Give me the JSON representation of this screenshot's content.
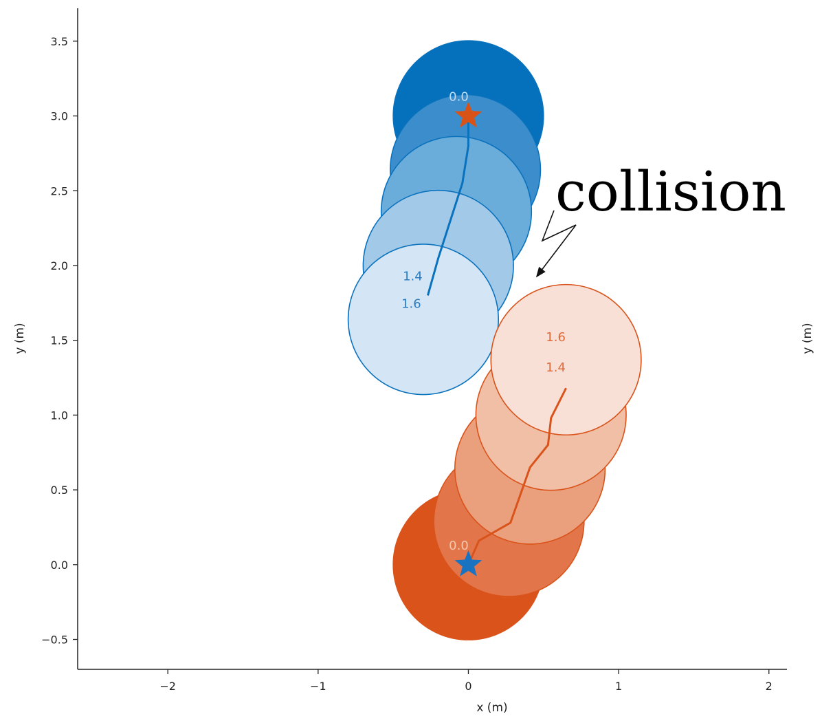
{
  "chart_data": {
    "type": "scatter",
    "xlabel": "x (m)",
    "ylabel": "y (m)",
    "right_ylabel": "y (m)",
    "xlim": [
      -2.6,
      2.12
    ],
    "ylim": [
      -0.7,
      3.72
    ],
    "xticks": [
      -2,
      -1,
      0,
      1,
      2
    ],
    "xtick_labels": [
      "−2",
      "−1",
      "0",
      "1",
      "2"
    ],
    "yticks": [
      -0.5,
      0.0,
      0.5,
      1.0,
      1.5,
      2.0,
      2.5,
      3.0,
      3.5
    ],
    "ytick_labels": [
      "−0.5",
      "0.0",
      "0.5",
      "1.0",
      "1.5",
      "2.0",
      "2.5",
      "3.0",
      "3.5"
    ],
    "grid": false,
    "robot_radius": 0.5,
    "series": [
      {
        "color": "#0a72bd",
        "goal": {
          "x": 0.0,
          "y": 0.0,
          "marker": "star",
          "color": "#1a73c0"
        },
        "positions": [
          {
            "x": 0.0,
            "y": 3.0,
            "fill": "#0570bc",
            "opacity": 1.0,
            "time_label": "0.0",
            "label_color": "#c6dbef"
          },
          {
            "x": -0.02,
            "y": 2.64,
            "fill": "#3b8ecb",
            "opacity": 1.0
          },
          {
            "x": -0.08,
            "y": 2.36,
            "fill": "#6aadda",
            "opacity": 1.0
          },
          {
            "x": -0.2,
            "y": 2.0,
            "fill": "#a3c9e8",
            "opacity": 1.0,
            "time_label": "1.4",
            "label_color": "#2b7cc0"
          },
          {
            "x": -0.3,
            "y": 1.64,
            "fill": "#d4e5f5",
            "opacity": 1.0,
            "time_label": "1.6",
            "label_color": "#2b7cc0"
          }
        ],
        "path": [
          [
            0.0,
            3.0
          ],
          [
            0.0,
            2.8
          ],
          [
            -0.04,
            2.55
          ],
          [
            -0.12,
            2.3
          ],
          [
            -0.2,
            2.05
          ],
          [
            -0.27,
            1.8
          ]
        ]
      },
      {
        "color": "#d9531b",
        "goal": {
          "x": 0.0,
          "y": 3.0,
          "marker": "star",
          "color": "#d95318"
        },
        "positions": [
          {
            "x": 0.0,
            "y": 0.0,
            "fill": "#d9531b",
            "opacity": 1.0,
            "time_label": "0.0",
            "label_color": "#f5c9b0"
          },
          {
            "x": 0.27,
            "y": 0.29,
            "fill": "#e2764a",
            "opacity": 1.0
          },
          {
            "x": 0.41,
            "y": 0.64,
            "fill": "#eba07d",
            "opacity": 1.0
          },
          {
            "x": 0.55,
            "y": 1.0,
            "fill": "#f1bea6",
            "opacity": 1.0,
            "time_label": "1.4",
            "label_color": "#de6a3c"
          },
          {
            "x": 0.65,
            "y": 1.37,
            "fill": "#f8e0d6",
            "opacity": 1.0,
            "time_label": "1.6",
            "label_color": "#de6a3c"
          }
        ],
        "path": [
          [
            0.0,
            0.0
          ],
          [
            0.07,
            0.16
          ],
          [
            0.28,
            0.28
          ],
          [
            0.41,
            0.65
          ],
          [
            0.53,
            0.8
          ],
          [
            0.55,
            0.98
          ],
          [
            0.65,
            1.18
          ]
        ]
      }
    ],
    "annotations": [
      {
        "text": "collision",
        "arrow_to": {
          "x": 0.45,
          "y": 1.92
        }
      }
    ]
  }
}
